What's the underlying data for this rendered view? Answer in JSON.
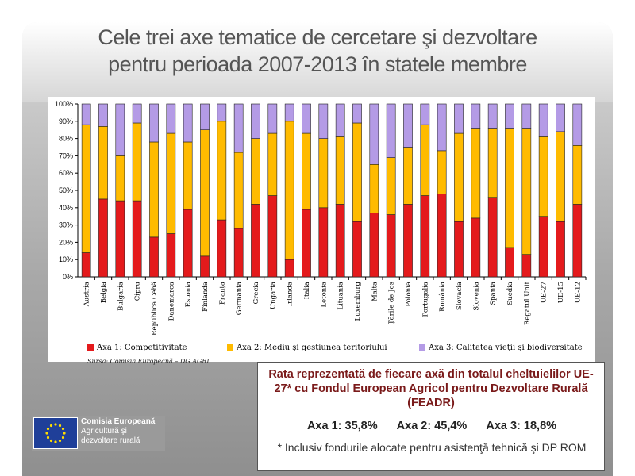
{
  "slide": {
    "title_line1": "Cele trei axe tematice de cercetare şi dezvoltare",
    "title_line2": "pentru perioada 2007-2013 în statele membre"
  },
  "chart_data": {
    "type": "bar",
    "stacked": true,
    "categories": [
      "Austria",
      "Belgia",
      "Bulgaria",
      "Cipru",
      "Republica Cehă",
      "Danemarca",
      "Estonia",
      "Finlanda",
      "Franța",
      "Germania",
      "Grecia",
      "Ungaria",
      "Irlanda",
      "Italia",
      "Letonia",
      "Lituania",
      "Luxemburg",
      "Malta",
      "Țările de Jos",
      "Polonia",
      "Portugalia",
      "România",
      "Slovacia",
      "Slovenia",
      "Spania",
      "Suedia",
      "Regatul Unit",
      "UE-27",
      "UE-15",
      "UE-12"
    ],
    "series": [
      {
        "name": "Axa 1: Competitivitate",
        "color": "#e41a1c",
        "values": [
          14,
          45,
          44,
          44,
          23,
          25,
          39,
          12,
          33,
          28,
          42,
          47,
          10,
          39,
          40,
          42,
          32,
          37,
          36,
          42,
          47,
          48,
          32,
          34,
          46,
          17,
          13,
          35,
          32,
          42
        ]
      },
      {
        "name": "Axa 2: Mediu şi gestiunea teritoriului",
        "color": "#ffbb00",
        "values": [
          74,
          42,
          26,
          45,
          55,
          58,
          39,
          73,
          57,
          44,
          38,
          36,
          80,
          44,
          40,
          39,
          57,
          28,
          33,
          33,
          41,
          25,
          51,
          52,
          40,
          69,
          73,
          46,
          52,
          34
        ]
      },
      {
        "name": "Axa 3: Calitatea vieţii şi biodiversitate",
        "color": "#b49be6",
        "values": [
          12,
          13,
          30,
          11,
          22,
          17,
          22,
          15,
          10,
          28,
          20,
          17,
          10,
          17,
          20,
          19,
          11,
          35,
          31,
          25,
          12,
          27,
          17,
          14,
          14,
          14,
          14,
          19,
          16,
          24
        ]
      }
    ],
    "yticks": [
      "0%",
      "10%",
      "20%",
      "30%",
      "40%",
      "50%",
      "60%",
      "70%",
      "80%",
      "90%",
      "100%"
    ],
    "ylim": [
      0,
      100
    ],
    "grid": false,
    "legend_position": "bottom",
    "source": "Sursa: Comisia Europeană – DG AGRI"
  },
  "infobox": {
    "title": "Rata reprezentată de fiecare axă din totalul cheltuielilor UE-27* cu Fondul European Agricol pentru Dezvoltare Rurală (FEADR)",
    "axa1": "Axa 1: 35,8%",
    "axa2": "Axa 2: 45,4%",
    "axa3": "Axa 3: 18,8%",
    "footnote": "* Inclusiv fondurile alocate pentru asistenţă tehnică şi DP ROM"
  },
  "logo": {
    "line1": "Comisia Europeană",
    "line2": "Agricultură şi",
    "line3": "dezvoltare rurală"
  }
}
